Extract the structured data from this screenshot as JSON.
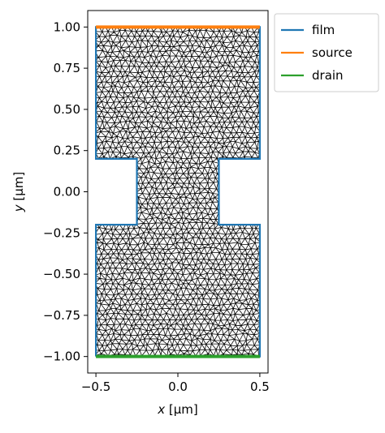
{
  "chart_data": {
    "type": "line",
    "title": "",
    "xlabel_var": "x",
    "xlabel_unit": " [µm]",
    "ylabel_var": "y",
    "ylabel_unit": " [µm]",
    "xlim": [
      -0.55,
      0.55
    ],
    "ylim": [
      -1.1,
      1.1
    ],
    "xticks": [
      {
        "value": -0.5,
        "label": "−0.5"
      },
      {
        "value": 0.0,
        "label": "0.0"
      },
      {
        "value": 0.5,
        "label": "0.5"
      }
    ],
    "yticks": [
      {
        "value": 1.0,
        "label": "1.00"
      },
      {
        "value": 0.75,
        "label": "0.75"
      },
      {
        "value": 0.5,
        "label": "0.50"
      },
      {
        "value": 0.25,
        "label": "0.25"
      },
      {
        "value": 0.0,
        "label": "0.00"
      },
      {
        "value": -0.25,
        "label": "−0.25"
      },
      {
        "value": -0.5,
        "label": "−0.50"
      },
      {
        "value": -0.75,
        "label": "−0.75"
      },
      {
        "value": -1.0,
        "label": "−1.00"
      }
    ],
    "grid": false,
    "legend_position": "outside-top-right",
    "mesh_color": "#000000",
    "series": [
      {
        "name": "film",
        "color": "#1f77b4",
        "points": [
          [
            -0.5,
            -1.0
          ],
          [
            0.5,
            -1.0
          ],
          [
            0.5,
            -0.2
          ],
          [
            0.25,
            -0.2
          ],
          [
            0.25,
            0.2
          ],
          [
            0.5,
            0.2
          ],
          [
            0.5,
            1.0
          ],
          [
            -0.5,
            1.0
          ],
          [
            -0.5,
            0.2
          ],
          [
            -0.25,
            0.2
          ],
          [
            -0.25,
            -0.2
          ],
          [
            -0.5,
            -0.2
          ],
          [
            -0.5,
            -1.0
          ]
        ]
      },
      {
        "name": "source",
        "color": "#ff7f0e",
        "points": [
          [
            -0.5,
            1.0
          ],
          [
            0.5,
            1.0
          ]
        ]
      },
      {
        "name": "drain",
        "color": "#2ca02c",
        "points": [
          [
            -0.5,
            -1.0
          ],
          [
            0.5,
            -1.0
          ]
        ]
      }
    ]
  }
}
